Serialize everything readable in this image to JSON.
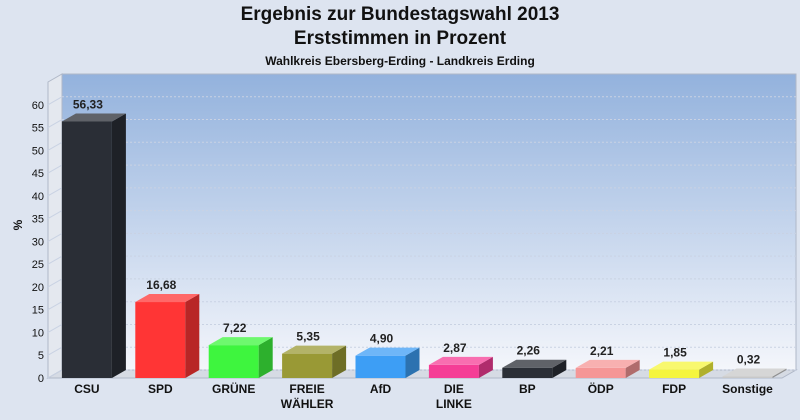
{
  "chart_data": {
    "type": "bar",
    "title": "Ergebnis zur Bundestagswahl 2013",
    "title_line2": "Erststimmen in Prozent",
    "subtitle": "Wahlkreis Ebersberg-Erding - Landkreis Erding",
    "ylabel": "%",
    "ylim": [
      0,
      65
    ],
    "yticks": [
      0,
      5,
      10,
      15,
      20,
      25,
      30,
      35,
      40,
      45,
      50,
      55,
      60
    ],
    "grid": true,
    "categories": [
      [
        "CSU"
      ],
      [
        "SPD"
      ],
      [
        "GRÜNE"
      ],
      [
        "FREIE",
        "WÄHLER"
      ],
      [
        "AfD"
      ],
      [
        "DIE",
        "LINKE"
      ],
      [
        "BP"
      ],
      [
        "ÖDP"
      ],
      [
        "FDP"
      ],
      [
        "Sonstige"
      ]
    ],
    "values": [
      56.33,
      16.68,
      7.22,
      5.35,
      4.9,
      2.87,
      2.26,
      2.21,
      1.85,
      0.32
    ],
    "value_labels": [
      "56,33",
      "16,68",
      "7,22",
      "5,35",
      "4,90",
      "2,87",
      "2,26",
      "2,21",
      "1,85",
      "0,32"
    ],
    "colors": [
      "#2a2e36",
      "#ff3535",
      "#3ef53e",
      "#999935",
      "#3d9ef5",
      "#f53d96",
      "#2a2e36",
      "#f59696",
      "#f5f53d",
      "#c8c8c8"
    ]
  }
}
